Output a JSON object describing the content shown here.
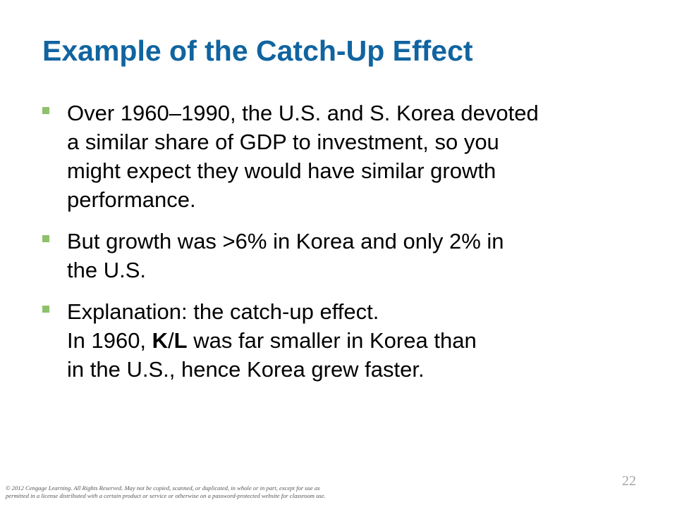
{
  "slide": {
    "title": "Example of the Catch-Up Effect",
    "bullets": [
      {
        "lines": [
          "Over 1960–1990, the U.S. and S. Korea devoted",
          "a similar share of GDP to investment, so you",
          "might expect they would have similar growth",
          "performance."
        ]
      },
      {
        "lines": [
          "But growth was >6% in Korea and only 2% in",
          "the U.S."
        ]
      },
      {
        "lines": [
          "Explanation:  the catch-up effect.",
          "In 1960, ",
          "K",
          "/",
          "L",
          " was far smaller in Korea than",
          "in the U.S., hence Korea grew faster."
        ]
      }
    ],
    "page_number": "22"
  },
  "footer": {
    "copyright_line1": "© 2012 Cengage Learning. All Rights Reserved. May not be copied, scanned, or duplicated, in whole or in part, except for use as",
    "copyright_line2": "permitted in a license distributed with a certain product or service or otherwise on a password-protected website for classroom use."
  },
  "colors": {
    "title": "#1064a0",
    "bullet_marker": "#8fc06b",
    "page_number": "#a5a5a5"
  }
}
